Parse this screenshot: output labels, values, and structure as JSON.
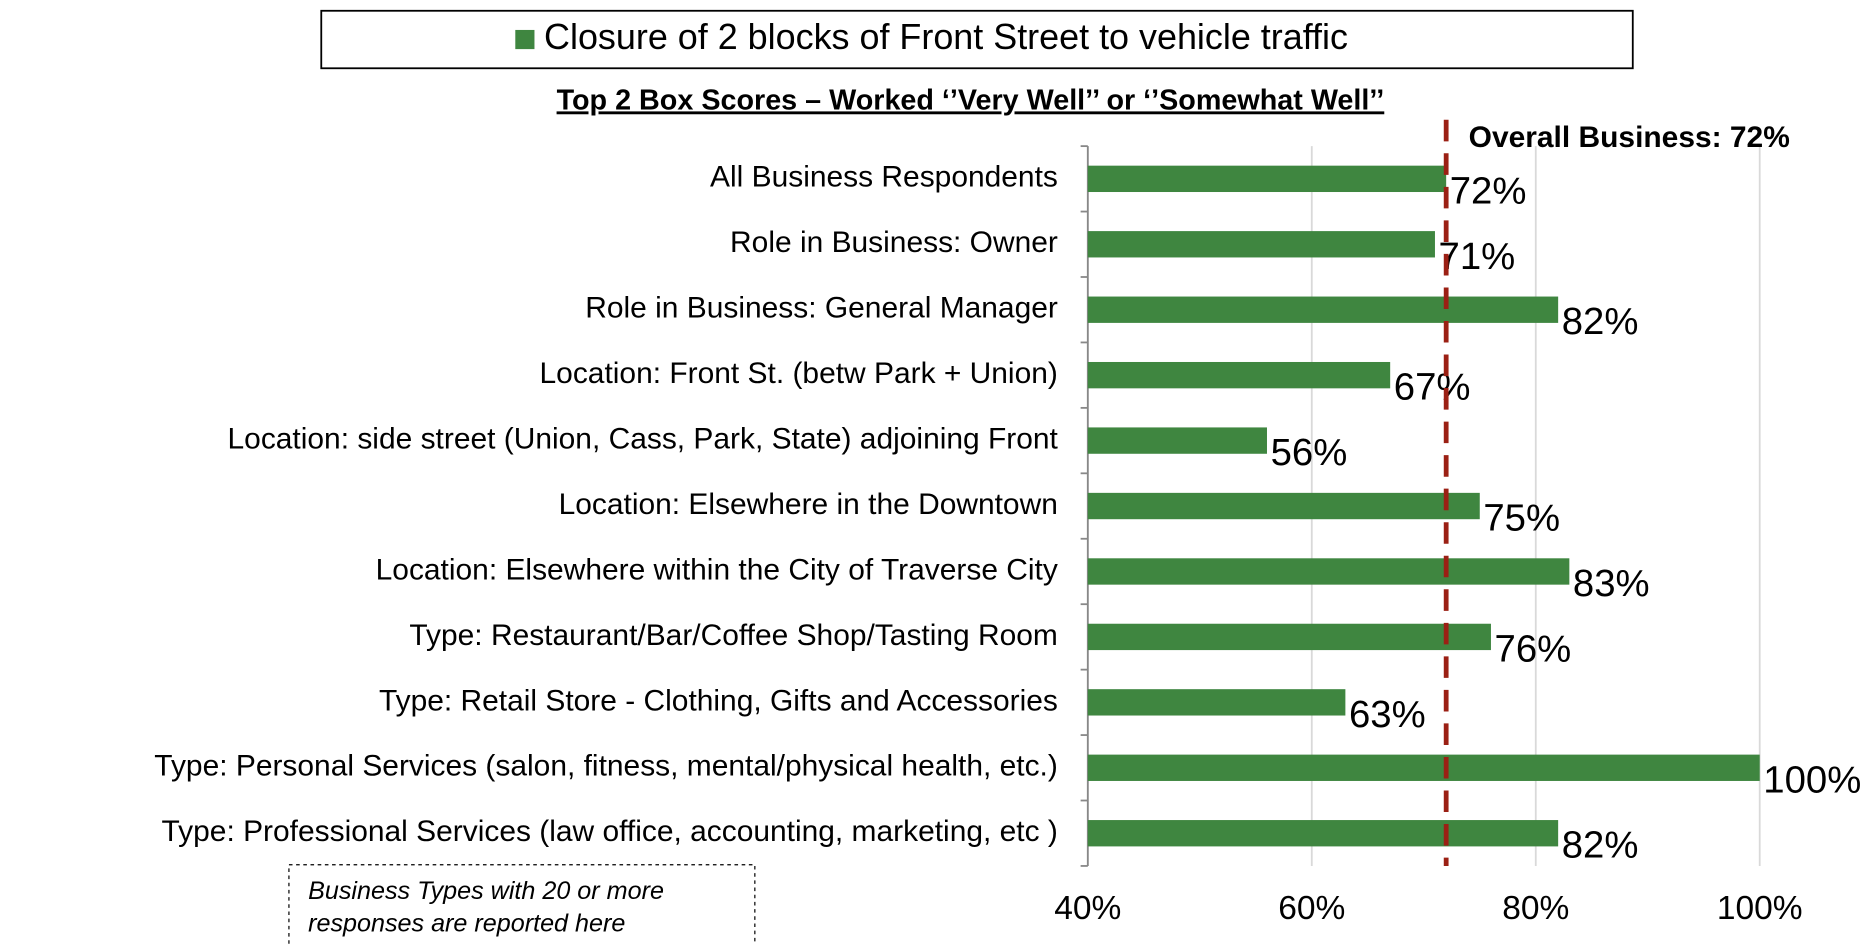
{
  "chart_data": {
    "type": "barh",
    "series_name": "Closure of 2 blocks of Front Street to vehicle traffic",
    "subtitle": "Top 2 Box Scores – Worked ‘’Very Well’’ or ‘’Somewhat Well’’",
    "categories": [
      "All Business Respondents",
      "Role in Business: Owner",
      "Role in Business: General Manager",
      "Location: Front St. (betw Park + Union)",
      "Location: side street (Union, Cass, Park, State) adjoining Front",
      "Location: Elsewhere in the Downtown",
      "Location: Elsewhere within the City of Traverse City",
      "Type: Restaurant/Bar/Coffee Shop/Tasting Room",
      "Type: Retail Store - Clothing, Gifts and Accessories",
      "Type: Personal Services (salon, fitness, mental/physical health, etc.)",
      "Type: Professional Services (law office, accounting, marketing, etc )"
    ],
    "values": [
      72,
      71,
      82,
      67,
      56,
      75,
      83,
      76,
      63,
      100,
      82
    ],
    "value_labels": [
      "72%",
      "71%",
      "82%",
      "67%",
      "56%",
      "75%",
      "83%",
      "76%",
      "63%",
      "100%",
      "82%"
    ],
    "color": "#3f8640",
    "xlim": [
      40,
      100
    ],
    "xticks": [
      {
        "value": 40,
        "label": "40%"
      },
      {
        "value": 60,
        "label": "60%"
      },
      {
        "value": 80,
        "label": "80%"
      },
      {
        "value": 100,
        "label": "100%"
      }
    ],
    "grid": true,
    "reference_line": {
      "value": 72,
      "label": "Overall Business: 72%",
      "color": "#9b2014"
    },
    "note": [
      "Business Types with 20 or more",
      "responses are reported here"
    ]
  }
}
